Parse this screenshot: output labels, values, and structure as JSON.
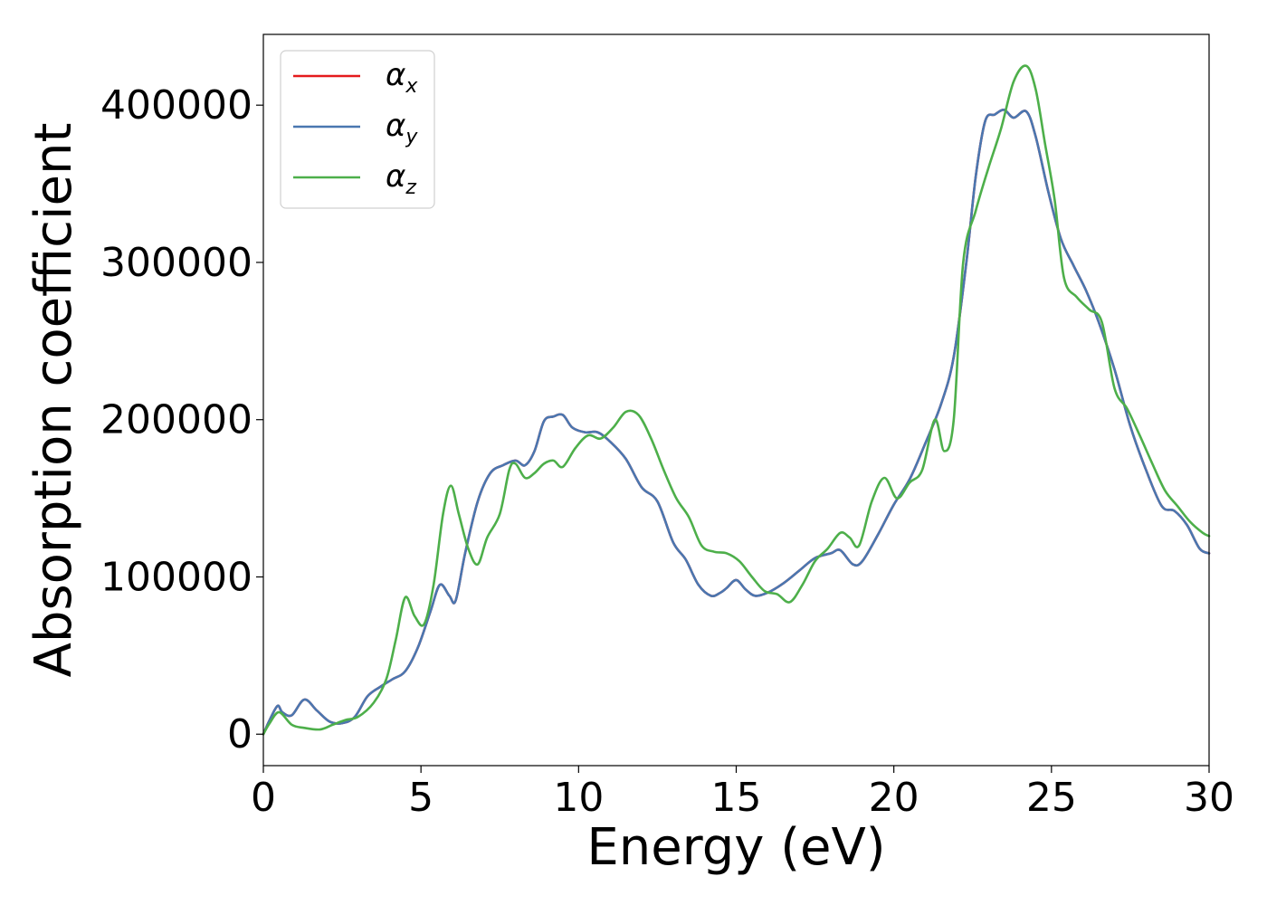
{
  "chart_data": {
    "type": "line",
    "title": "",
    "xlabel": "Energy (eV)",
    "ylabel": "Absorption coefficient",
    "xlim": [
      0,
      30
    ],
    "ylim": [
      -20000,
      445000
    ],
    "xticks": [
      0,
      5,
      10,
      15,
      20,
      25,
      30
    ],
    "xtick_labels": [
      "0",
      "5",
      "10",
      "15",
      "20",
      "25",
      "30"
    ],
    "yticks": [
      0,
      100000,
      200000,
      300000,
      400000
    ],
    "ytick_labels": [
      "0",
      "100000",
      "200000",
      "300000",
      "400000"
    ],
    "grid": false,
    "legend_position": "top-left",
    "series": [
      {
        "name": "α",
        "subscript": "x",
        "color": "#e41a1c",
        "x": [
          0,
          0.2,
          0.45,
          0.6,
          0.9,
          1.3,
          1.7,
          2.1,
          2.5,
          2.9,
          3.3,
          3.7,
          4.1,
          4.5,
          4.9,
          5.3,
          5.6,
          5.9,
          6.1,
          6.4,
          6.8,
          7.2,
          7.6,
          8.0,
          8.3,
          8.6,
          8.9,
          9.2,
          9.5,
          9.8,
          10.2,
          10.6,
          11.0,
          11.5,
          12.0,
          12.5,
          13.0,
          13.4,
          13.8,
          14.2,
          14.5,
          14.7,
          15.0,
          15.3,
          15.6,
          16.0,
          16.5,
          17.0,
          17.5,
          18.0,
          18.3,
          18.7,
          19.0,
          19.5,
          20.0,
          20.5,
          21.0,
          21.5,
          21.9,
          22.3,
          22.6,
          22.9,
          23.2,
          23.5,
          23.8,
          24.2,
          24.5,
          24.9,
          25.3,
          25.7,
          26.1,
          26.5,
          27.0,
          27.5,
          28.0,
          28.5,
          28.9,
          29.3,
          29.7,
          30.0
        ],
        "values": [
          0,
          9000,
          18000,
          14000,
          12000,
          22000,
          15000,
          8000,
          7000,
          11000,
          24000,
          30000,
          35000,
          40000,
          55000,
          78000,
          95000,
          88000,
          85000,
          115000,
          148000,
          166000,
          171000,
          174000,
          171000,
          180000,
          199000,
          202000,
          203000,
          195000,
          192000,
          192000,
          186000,
          175000,
          157000,
          148000,
          122000,
          111000,
          95000,
          88000,
          90000,
          93000,
          98000,
          92000,
          88000,
          90000,
          96000,
          104000,
          112000,
          115000,
          117000,
          108000,
          110000,
          127000,
          146000,
          162000,
          185000,
          210000,
          240000,
          300000,
          355000,
          390000,
          394000,
          397000,
          392000,
          396000,
          380000,
          345000,
          315000,
          298000,
          282000,
          262000,
          232000,
          196000,
          168000,
          145000,
          142000,
          133000,
          118000,
          115000
        ]
      },
      {
        "name": "α",
        "subscript": "y",
        "color": "#4a77b0",
        "x": [
          0,
          0.2,
          0.45,
          0.6,
          0.9,
          1.3,
          1.7,
          2.1,
          2.5,
          2.9,
          3.3,
          3.7,
          4.1,
          4.5,
          4.9,
          5.3,
          5.6,
          5.9,
          6.1,
          6.4,
          6.8,
          7.2,
          7.6,
          8.0,
          8.3,
          8.6,
          8.9,
          9.2,
          9.5,
          9.8,
          10.2,
          10.6,
          11.0,
          11.5,
          12.0,
          12.5,
          13.0,
          13.4,
          13.8,
          14.2,
          14.5,
          14.7,
          15.0,
          15.3,
          15.6,
          16.0,
          16.5,
          17.0,
          17.5,
          18.0,
          18.3,
          18.7,
          19.0,
          19.5,
          20.0,
          20.5,
          21.0,
          21.5,
          21.9,
          22.3,
          22.6,
          22.9,
          23.2,
          23.5,
          23.8,
          24.2,
          24.5,
          24.9,
          25.3,
          25.7,
          26.1,
          26.5,
          27.0,
          27.5,
          28.0,
          28.5,
          28.9,
          29.3,
          29.7,
          30.0
        ],
        "values": [
          0,
          9000,
          18000,
          14000,
          12000,
          22000,
          15000,
          8000,
          7000,
          11000,
          24000,
          30000,
          35000,
          40000,
          55000,
          78000,
          95000,
          88000,
          85000,
          115000,
          148000,
          166000,
          171000,
          174000,
          171000,
          180000,
          199000,
          202000,
          203000,
          195000,
          192000,
          192000,
          186000,
          175000,
          157000,
          148000,
          122000,
          111000,
          95000,
          88000,
          90000,
          93000,
          98000,
          92000,
          88000,
          90000,
          96000,
          104000,
          112000,
          115000,
          117000,
          108000,
          110000,
          127000,
          146000,
          162000,
          185000,
          210000,
          240000,
          300000,
          355000,
          390000,
          394000,
          397000,
          392000,
          396000,
          380000,
          345000,
          315000,
          298000,
          282000,
          262000,
          232000,
          196000,
          168000,
          145000,
          142000,
          133000,
          118000,
          115000
        ]
      },
      {
        "name": "α",
        "subscript": "z",
        "color": "#4daf4a",
        "x": [
          0,
          0.2,
          0.5,
          0.9,
          1.3,
          1.8,
          2.2,
          2.6,
          3.0,
          3.5,
          3.9,
          4.2,
          4.5,
          4.8,
          5.1,
          5.4,
          5.7,
          5.95,
          6.2,
          6.5,
          6.8,
          7.1,
          7.5,
          7.8,
          8.0,
          8.3,
          8.6,
          8.9,
          9.2,
          9.5,
          9.9,
          10.3,
          10.7,
          11.1,
          11.5,
          11.9,
          12.3,
          12.7,
          13.1,
          13.5,
          13.9,
          14.3,
          14.7,
          15.1,
          15.5,
          15.9,
          16.3,
          16.7,
          17.1,
          17.5,
          17.9,
          18.3,
          18.6,
          18.9,
          19.3,
          19.7,
          20.1,
          20.5,
          20.9,
          21.3,
          21.6,
          21.9,
          22.2,
          22.6,
          23.0,
          23.4,
          23.8,
          24.2,
          24.5,
          24.8,
          25.1,
          25.4,
          25.8,
          26.2,
          26.6,
          27.0,
          27.4,
          27.8,
          28.2,
          28.6,
          29.0,
          29.4,
          29.8,
          30.0
        ],
        "values": [
          0,
          7000,
          14000,
          6000,
          4000,
          3000,
          6000,
          9000,
          11000,
          20000,
          35000,
          60000,
          87000,
          75000,
          70000,
          95000,
          140000,
          158000,
          140000,
          118000,
          108000,
          125000,
          140000,
          168000,
          172000,
          163000,
          166000,
          172000,
          174000,
          170000,
          182000,
          190000,
          188000,
          195000,
          205000,
          203000,
          188000,
          168000,
          150000,
          138000,
          120000,
          116000,
          115000,
          110000,
          100000,
          91000,
          89000,
          84000,
          95000,
          110000,
          118000,
          128000,
          125000,
          120000,
          148000,
          163000,
          150000,
          160000,
          168000,
          200000,
          180000,
          200000,
          300000,
          333000,
          360000,
          385000,
          415000,
          425000,
          410000,
          375000,
          340000,
          290000,
          278000,
          270000,
          262000,
          220000,
          207000,
          190000,
          172000,
          155000,
          145000,
          135000,
          128000,
          126000
        ]
      }
    ]
  }
}
